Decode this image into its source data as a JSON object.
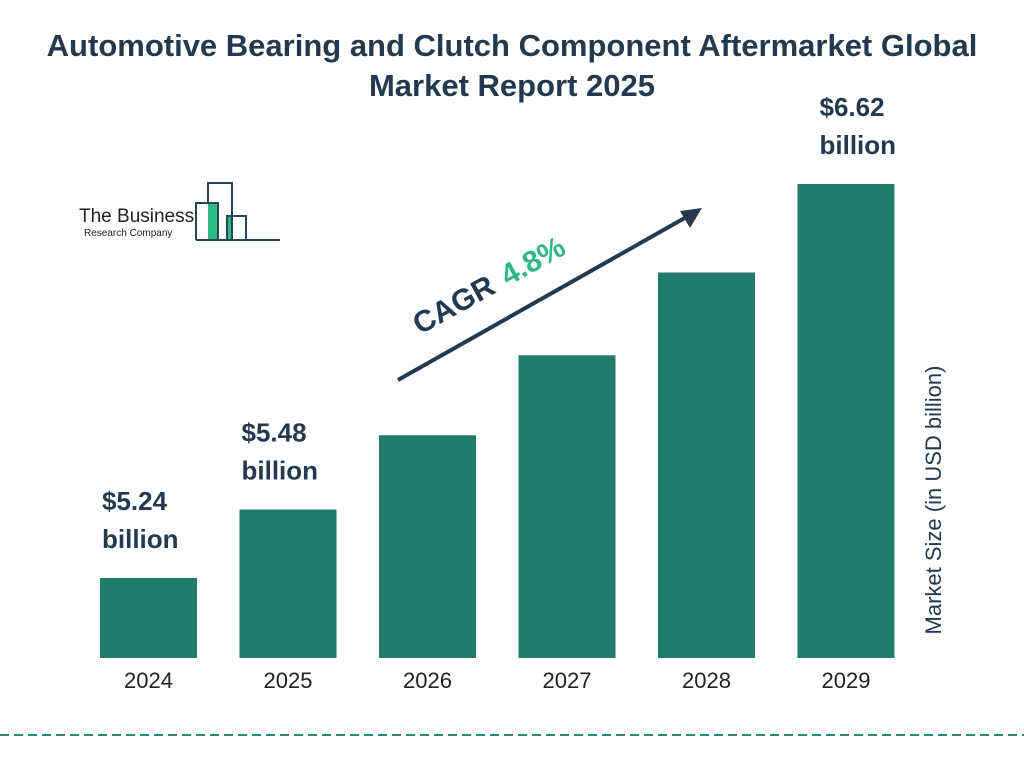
{
  "chart_data": {
    "type": "bar",
    "title": "Automotive Bearing and Clutch Component Aftermarket Global Market Report 2025",
    "ylabel": "Market Size (in USD billion)",
    "xlabel": "",
    "categories": [
      "2024",
      "2025",
      "2026",
      "2027",
      "2028",
      "2029"
    ],
    "values": [
      5.24,
      5.48,
      5.74,
      6.02,
      6.31,
      6.62
    ],
    "data_labels": [
      {
        "category": "2024",
        "line1": "$5.24",
        "line2": "billion"
      },
      {
        "category": "2025",
        "line1": "$5.48",
        "line2": "billion"
      },
      {
        "category": "2029",
        "line1": "$6.62",
        "line2": "billion"
      }
    ],
    "annotation": {
      "prefix": "CAGR",
      "value": "4.8%"
    },
    "grid": false,
    "bar_color": "#217c6c",
    "accent_color": "#2fb786",
    "text_color": "#24384f"
  },
  "logo": {
    "line1": "The Business",
    "line2": "Research Company"
  }
}
